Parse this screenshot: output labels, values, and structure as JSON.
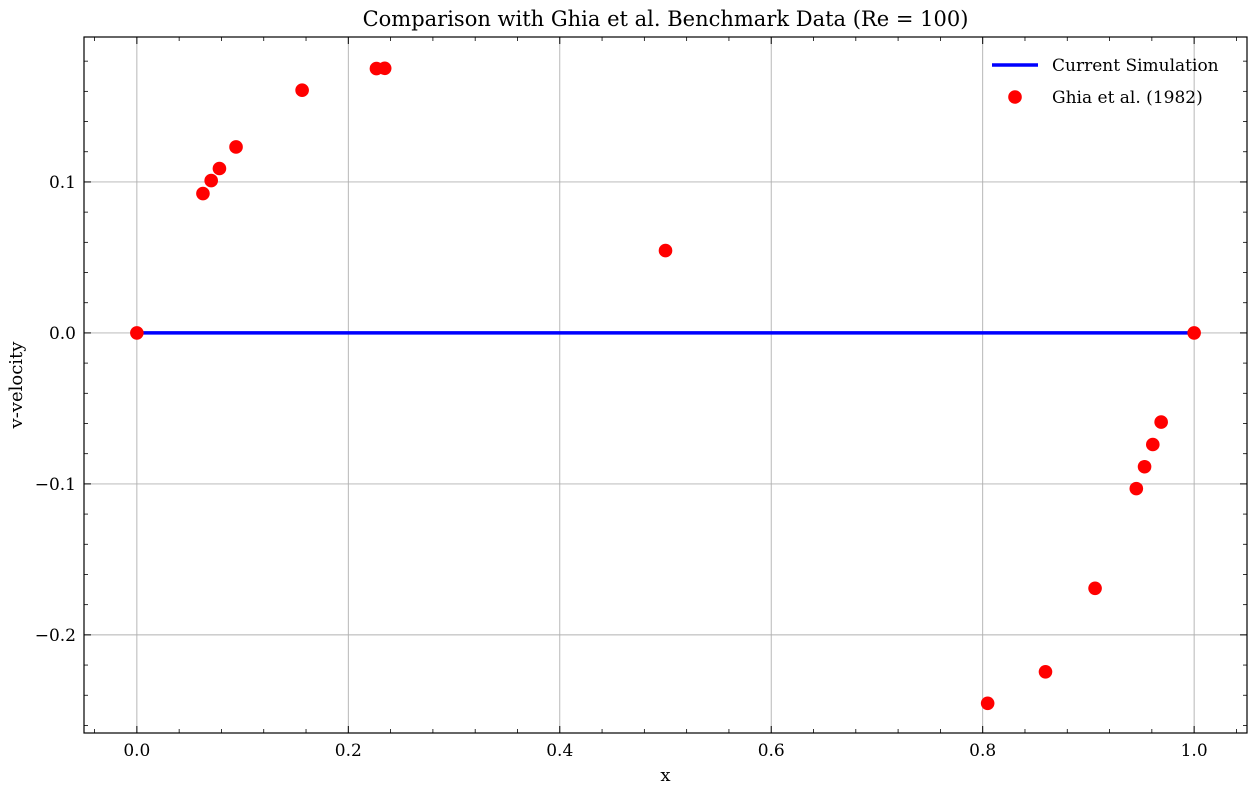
{
  "chart_data": {
    "type": "scatter",
    "title": "Comparison with Ghia et al. Benchmark Data (Re = 100)",
    "xlabel": "x",
    "ylabel": "v-velocity",
    "xlim": [
      -0.05,
      1.05
    ],
    "ylim": [
      -0.265,
      0.196
    ],
    "xticks": [
      0.0,
      0.2,
      0.4,
      0.6,
      0.8,
      1.0
    ],
    "xtick_labels": [
      "0.0",
      "0.2",
      "0.4",
      "0.6",
      "0.8",
      "1.0"
    ],
    "yticks": [
      -0.2,
      -0.1,
      0.0,
      0.1
    ],
    "ytick_labels": [
      "−0.2",
      "−0.1",
      "0.0",
      "0.1"
    ],
    "grid": true,
    "legend_position": "top-right",
    "series": [
      {
        "name": "Current Simulation",
        "kind": "line",
        "color": "#0000ff",
        "x": [
          0.0,
          1.0
        ],
        "y": [
          0.0,
          0.0
        ]
      },
      {
        "name": "Ghia et al. (1982)",
        "kind": "scatter",
        "color": "#ff0000",
        "x": [
          0.0,
          0.0625,
          0.0703,
          0.0781,
          0.0938,
          0.1563,
          0.2266,
          0.2344,
          0.5,
          0.8047,
          0.8594,
          0.9063,
          0.9453,
          0.9531,
          0.9609,
          0.9688,
          1.0
        ],
        "y": [
          0.0,
          0.09233,
          0.10091,
          0.1089,
          0.12317,
          0.16077,
          0.17507,
          0.17527,
          0.05454,
          -0.24533,
          -0.22445,
          -0.16914,
          -0.10313,
          -0.08864,
          -0.07391,
          -0.05906,
          0.0
        ]
      }
    ]
  }
}
